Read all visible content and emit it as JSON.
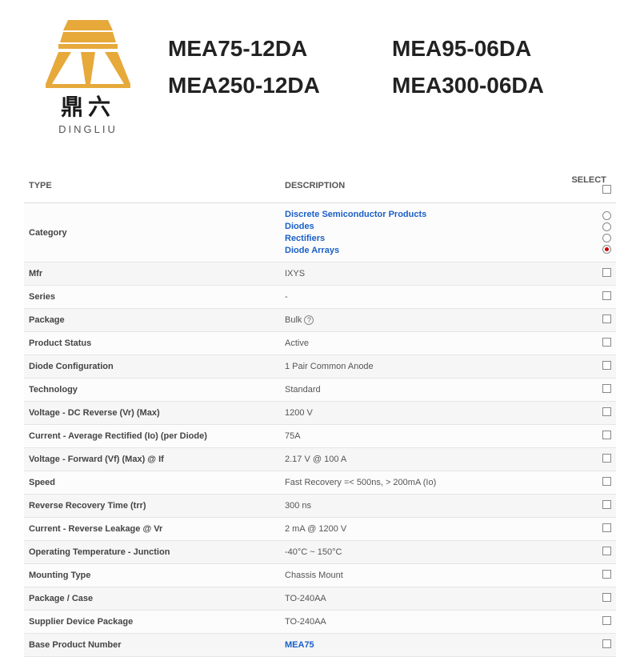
{
  "brand": {
    "cn": "鼎六",
    "en": "DINGLIU",
    "logo_color": "#e6a93a"
  },
  "parts": [
    "MEA75-12DA",
    "MEA95-06DA",
    "MEA250-12DA",
    "MEA300-06DA"
  ],
  "table": {
    "headers": {
      "type": "TYPE",
      "description": "DESCRIPTION",
      "select": "SELECT"
    },
    "category_row": {
      "label": "Category",
      "items": [
        "Discrete Semiconductor Products",
        "Diodes",
        "Rectifiers",
        "Diode Arrays"
      ],
      "selected_index": 3
    },
    "rows": [
      {
        "type": "Mfr",
        "desc": "IXYS"
      },
      {
        "type": "Series",
        "desc": "-"
      },
      {
        "type": "Package",
        "desc": "Bulk",
        "help": true
      },
      {
        "type": "Product Status",
        "desc": "Active"
      },
      {
        "type": "Diode Configuration",
        "desc": "1 Pair Common Anode"
      },
      {
        "type": "Technology",
        "desc": "Standard"
      },
      {
        "type": "Voltage - DC Reverse (Vr) (Max)",
        "desc": "1200 V"
      },
      {
        "type": "Current - Average Rectified (Io) (per Diode)",
        "desc": "75A"
      },
      {
        "type": "Voltage - Forward (Vf) (Max) @ If",
        "desc": "2.17 V @ 100 A"
      },
      {
        "type": "Speed",
        "desc": "Fast Recovery =< 500ns, > 200mA (Io)"
      },
      {
        "type": "Reverse Recovery Time (trr)",
        "desc": "300 ns"
      },
      {
        "type": "Current - Reverse Leakage @ Vr",
        "desc": "2 mA @ 1200 V"
      },
      {
        "type": "Operating Temperature - Junction",
        "desc": "-40°C ~ 150°C"
      },
      {
        "type": "Mounting Type",
        "desc": "Chassis Mount"
      },
      {
        "type": "Package / Case",
        "desc": "TO-240AA"
      },
      {
        "type": "Supplier Device Package",
        "desc": "TO-240AA"
      },
      {
        "type": "Base Product Number",
        "desc": "MEA75",
        "link": true
      }
    ]
  },
  "style": {
    "link_color": "#1a5fc7",
    "border_color": "#e5e5e5",
    "alt_row_bg": "#f6f6f6",
    "radio_selected_color": "#cc0000"
  }
}
